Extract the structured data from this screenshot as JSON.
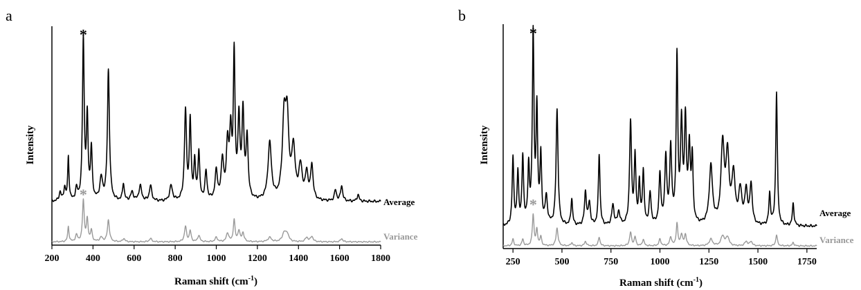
{
  "chart_data": [
    {
      "panel": "a",
      "type": "line",
      "xlabel": "Raman shift (cm-1)",
      "xlabel_base": "Raman shift (cm",
      "xlabel_sup": "-1",
      "xlabel_end": ")",
      "ylabel": "Intensity",
      "xlim": [
        200,
        1800
      ],
      "ylim": [
        0,
        1.0
      ],
      "xticks": [
        200,
        400,
        600,
        800,
        1000,
        1200,
        1400,
        1600,
        1800
      ],
      "xtick_labels": [
        "200",
        "400",
        "600",
        "800",
        "1000",
        "1200",
        "1400",
        "1600",
        "1800"
      ],
      "annotations": [
        {
          "text": "*",
          "x": 353,
          "y": 0.97,
          "color": "#000000"
        },
        {
          "text": "*",
          "x": 353,
          "y": 0.235,
          "color": "#999999"
        }
      ],
      "series": [
        {
          "name": "Average",
          "color": "#000000",
          "baseline": 0.2,
          "peaks": [
            [
              240,
              0.04,
              6
            ],
            [
              262,
              0.06,
              5
            ],
            [
              280,
              0.2,
              4
            ],
            [
              320,
              0.05,
              6
            ],
            [
              353,
              0.74,
              5
            ],
            [
              372,
              0.37,
              5
            ],
            [
              392,
              0.23,
              5
            ],
            [
              440,
              0.1,
              8
            ],
            [
              475,
              0.6,
              6
            ],
            [
              548,
              0.08,
              5
            ],
            [
              590,
              0.04,
              8
            ],
            [
              630,
              0.07,
              8
            ],
            [
              680,
              0.07,
              7
            ],
            [
              780,
              0.07,
              8
            ],
            [
              850,
              0.41,
              6
            ],
            [
              873,
              0.36,
              5
            ],
            [
              895,
              0.17,
              5
            ],
            [
              915,
              0.22,
              5
            ],
            [
              950,
              0.13,
              6
            ],
            [
              1000,
              0.13,
              7
            ],
            [
              1030,
              0.18,
              7
            ],
            [
              1055,
              0.25,
              7
            ],
            [
              1070,
              0.28,
              6
            ],
            [
              1087,
              0.65,
              5
            ],
            [
              1110,
              0.36,
              6
            ],
            [
              1130,
              0.39,
              6
            ],
            [
              1150,
              0.28,
              6
            ],
            [
              1260,
              0.26,
              10
            ],
            [
              1330,
              0.36,
              10
            ],
            [
              1345,
              0.34,
              9
            ],
            [
              1375,
              0.23,
              10
            ],
            [
              1410,
              0.15,
              10
            ],
            [
              1440,
              0.12,
              8
            ],
            [
              1465,
              0.16,
              7
            ],
            [
              1580,
              0.05,
              6
            ],
            [
              1610,
              0.07,
              6
            ],
            [
              1690,
              0.03,
              6
            ]
          ],
          "wiggle": 0.006
        },
        {
          "name": "Variance",
          "color": "#999999",
          "baseline": 0.015,
          "peaks": [
            [
              280,
              0.07,
              4
            ],
            [
              320,
              0.03,
              6
            ],
            [
              353,
              0.19,
              5
            ],
            [
              372,
              0.1,
              5
            ],
            [
              392,
              0.05,
              5
            ],
            [
              440,
              0.02,
              8
            ],
            [
              475,
              0.1,
              6
            ],
            [
              550,
              0.015,
              6
            ],
            [
              680,
              0.015,
              7
            ],
            [
              850,
              0.07,
              6
            ],
            [
              873,
              0.05,
              5
            ],
            [
              915,
              0.03,
              6
            ],
            [
              1000,
              0.02,
              7
            ],
            [
              1055,
              0.04,
              7
            ],
            [
              1087,
              0.1,
              5
            ],
            [
              1110,
              0.05,
              6
            ],
            [
              1130,
              0.04,
              6
            ],
            [
              1260,
              0.02,
              10
            ],
            [
              1330,
              0.04,
              10
            ],
            [
              1345,
              0.035,
              9
            ],
            [
              1440,
              0.02,
              8
            ],
            [
              1465,
              0.025,
              7
            ],
            [
              1610,
              0.015,
              6
            ]
          ],
          "wiggle": 0.003
        }
      ]
    },
    {
      "panel": "b",
      "type": "line",
      "xlabel": "Raman shift (cm-1)",
      "xlabel_base": "Raman shift (cm",
      "xlabel_sup": "-1",
      "xlabel_end": ")",
      "ylabel": "Intensity",
      "xlim": [
        200,
        1800
      ],
      "ylim": [
        0,
        1.0
      ],
      "xticks": [
        250,
        500,
        750,
        1000,
        1250,
        1500,
        1750
      ],
      "xtick_labels": [
        "250",
        "500",
        "750",
        "1000",
        "1250",
        "1500",
        "1750"
      ],
      "annotations": [
        {
          "text": "*",
          "x": 353,
          "y": 0.97,
          "color": "#000000"
        },
        {
          "text": "*",
          "x": 353,
          "y": 0.2,
          "color": "#999999"
        }
      ],
      "series": [
        {
          "name": "Average",
          "color": "#000000",
          "baseline": 0.1,
          "peaks": [
            [
              250,
              0.3,
              5
            ],
            [
              275,
              0.23,
              5
            ],
            [
              300,
              0.3,
              5
            ],
            [
              330,
              0.25,
              5
            ],
            [
              353,
              0.85,
              5
            ],
            [
              372,
              0.5,
              5
            ],
            [
              392,
              0.3,
              5
            ],
            [
              420,
              0.12,
              7
            ],
            [
              475,
              0.52,
              6
            ],
            [
              550,
              0.12,
              5
            ],
            [
              620,
              0.15,
              6
            ],
            [
              640,
              0.1,
              6
            ],
            [
              690,
              0.32,
              5
            ],
            [
              760,
              0.09,
              7
            ],
            [
              790,
              0.06,
              7
            ],
            [
              850,
              0.46,
              6
            ],
            [
              873,
              0.3,
              5
            ],
            [
              895,
              0.18,
              5
            ],
            [
              915,
              0.24,
              5
            ],
            [
              950,
              0.14,
              6
            ],
            [
              1000,
              0.22,
              6
            ],
            [
              1030,
              0.3,
              6
            ],
            [
              1055,
              0.34,
              6
            ],
            [
              1087,
              0.74,
              5
            ],
            [
              1110,
              0.44,
              6
            ],
            [
              1130,
              0.45,
              6
            ],
            [
              1150,
              0.33,
              6
            ],
            [
              1165,
              0.28,
              5
            ],
            [
              1260,
              0.26,
              10
            ],
            [
              1320,
              0.36,
              10
            ],
            [
              1345,
              0.3,
              9
            ],
            [
              1375,
              0.22,
              10
            ],
            [
              1410,
              0.15,
              10
            ],
            [
              1440,
              0.15,
              8
            ],
            [
              1465,
              0.18,
              7
            ],
            [
              1560,
              0.14,
              5
            ],
            [
              1595,
              0.6,
              5
            ],
            [
              1680,
              0.1,
              5
            ]
          ],
          "wiggle": 0.006
        },
        {
          "name": "Variance",
          "color": "#999999",
          "baseline": 0.012,
          "peaks": [
            [
              250,
              0.03,
              5
            ],
            [
              300,
              0.03,
              5
            ],
            [
              353,
              0.14,
              5
            ],
            [
              372,
              0.07,
              5
            ],
            [
              392,
              0.04,
              5
            ],
            [
              475,
              0.08,
              6
            ],
            [
              550,
              0.015,
              5
            ],
            [
              620,
              0.02,
              6
            ],
            [
              690,
              0.04,
              5
            ],
            [
              850,
              0.06,
              6
            ],
            [
              873,
              0.04,
              5
            ],
            [
              915,
              0.03,
              5
            ],
            [
              1000,
              0.03,
              6
            ],
            [
              1055,
              0.04,
              6
            ],
            [
              1087,
              0.1,
              5
            ],
            [
              1110,
              0.05,
              6
            ],
            [
              1130,
              0.05,
              6
            ],
            [
              1260,
              0.03,
              10
            ],
            [
              1320,
              0.045,
              10
            ],
            [
              1345,
              0.04,
              9
            ],
            [
              1440,
              0.02,
              8
            ],
            [
              1465,
              0.02,
              7
            ],
            [
              1595,
              0.05,
              5
            ],
            [
              1680,
              0.015,
              5
            ]
          ],
          "wiggle": 0.003
        }
      ]
    }
  ]
}
